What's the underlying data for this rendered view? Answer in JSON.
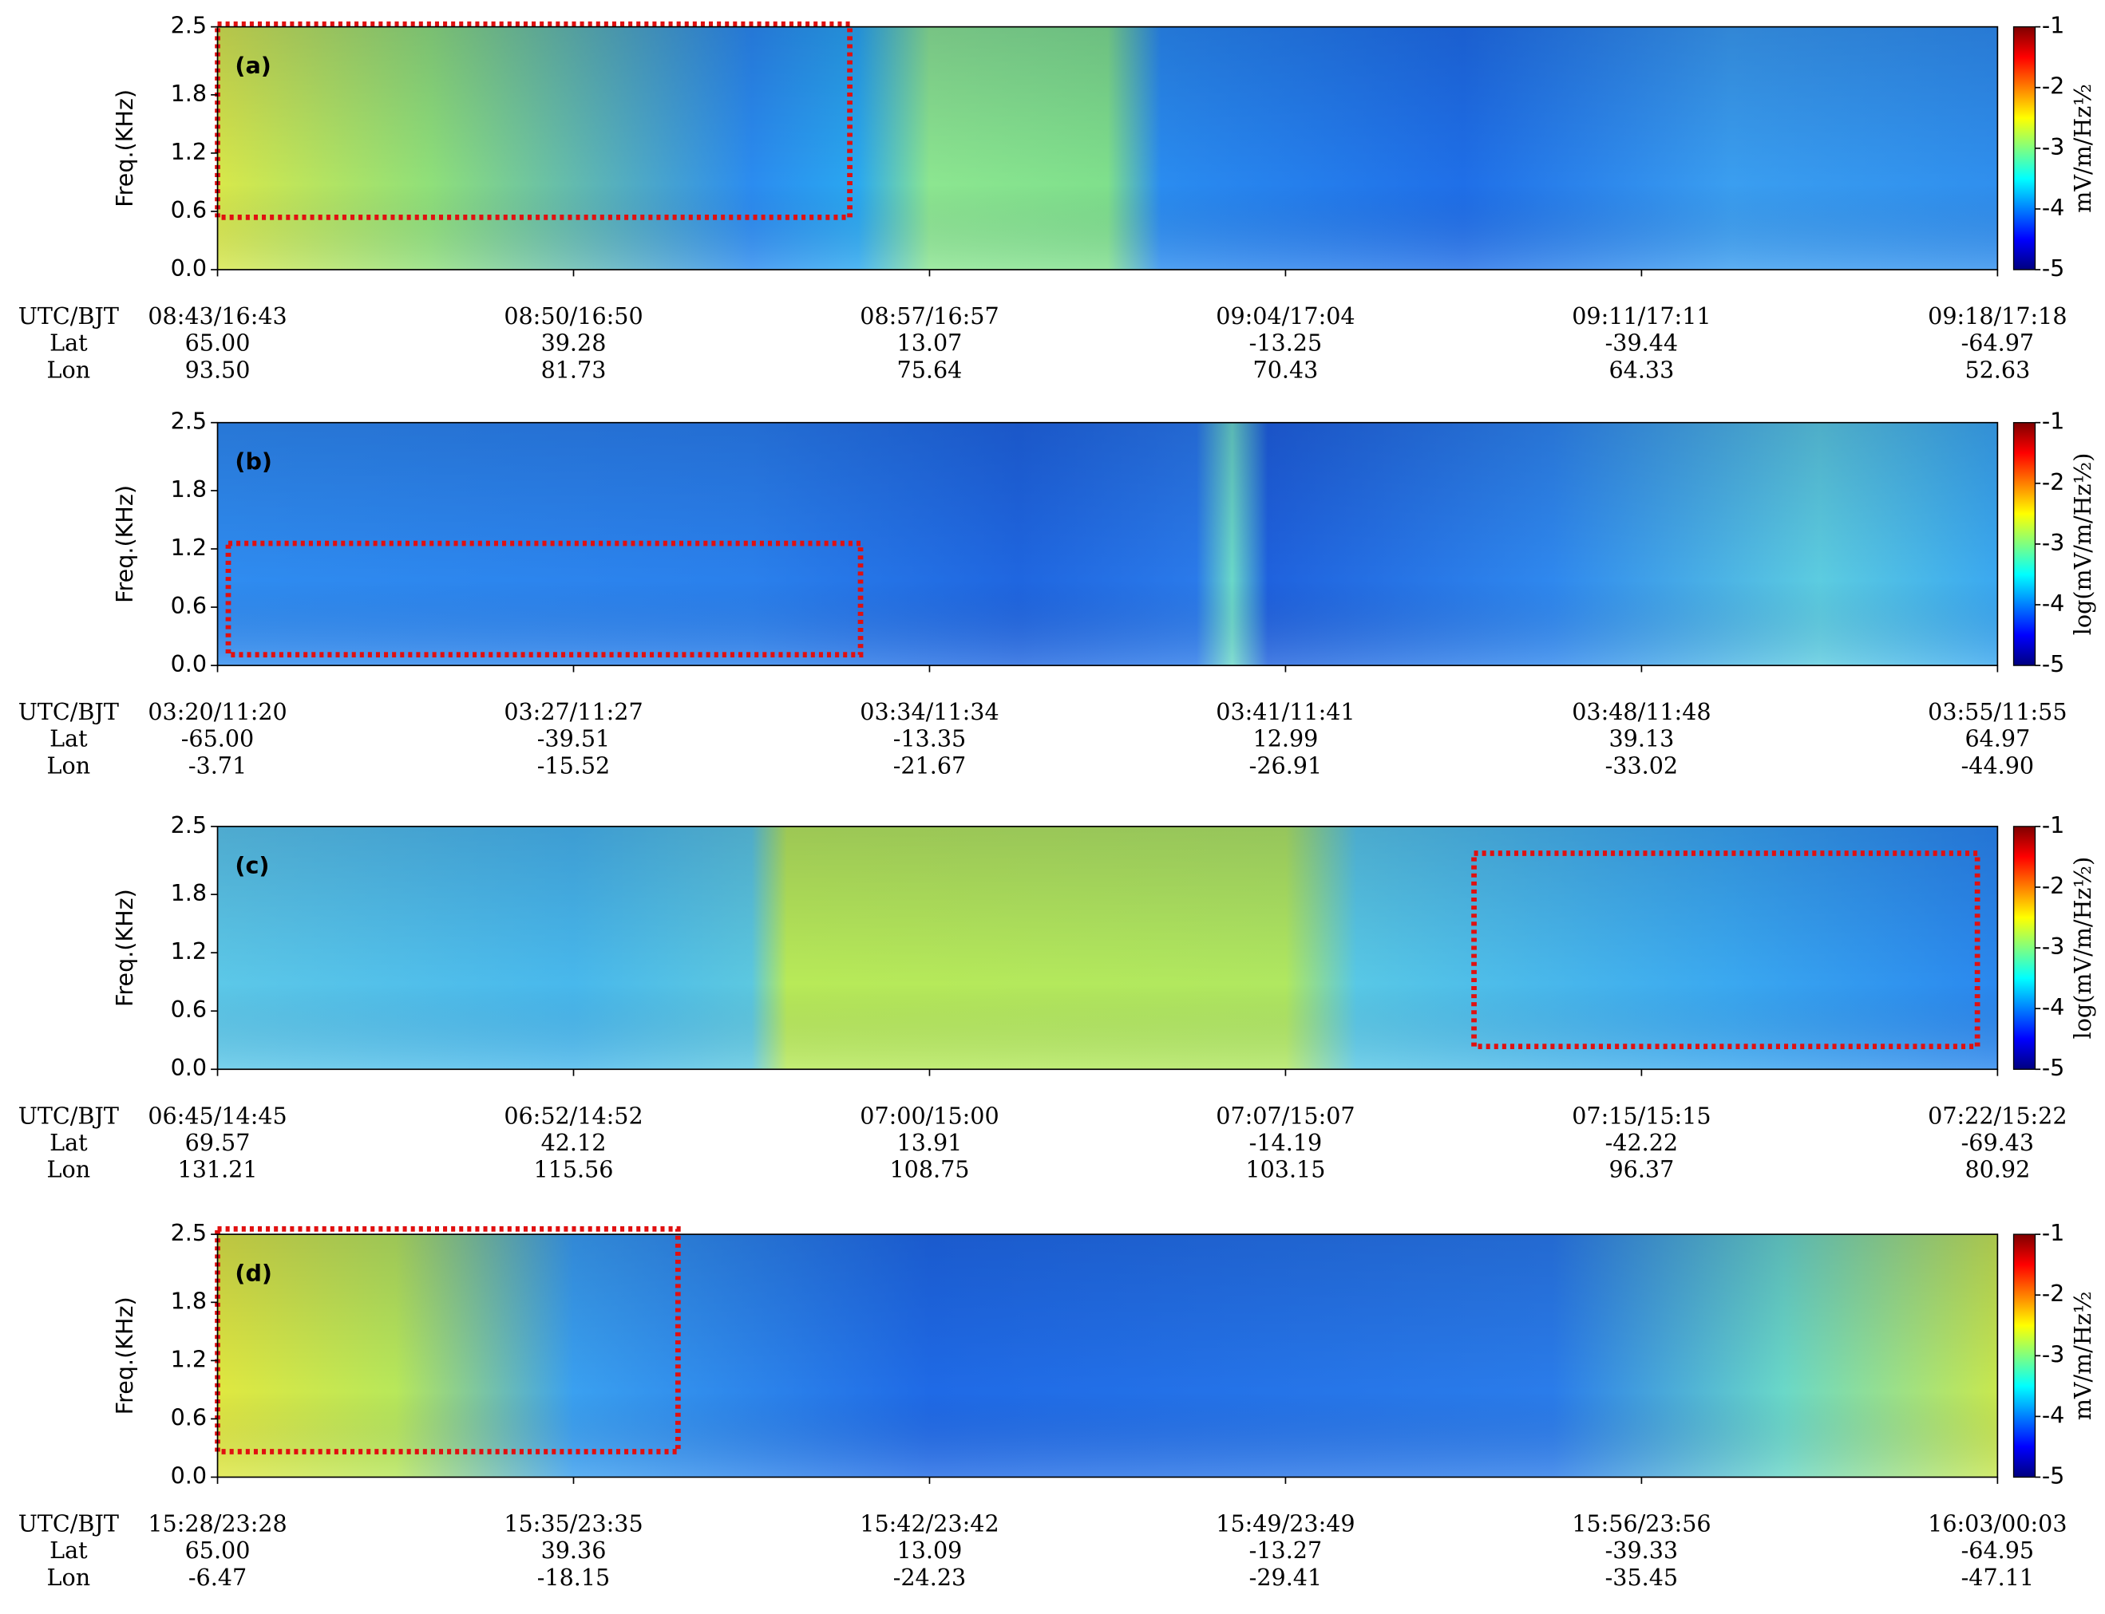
{
  "chart_data": [
    {
      "type": "spectrogram",
      "panel_label": "(a)",
      "ylabel": "Freq.(KHz)",
      "colormap": "jet",
      "ylim": [
        0,
        2.5
      ],
      "yticks": [
        {
          "value": 0,
          "label": "0.0"
        },
        0.6,
        1.2,
        1.8,
        2.5
      ],
      "clim": [
        -5,
        -1
      ],
      "cticks": [
        -5,
        -4,
        -3,
        -2,
        -1
      ],
      "clabel": "mV/m/Hz½",
      "xrows": [
        {
          "name": "UTC/BJT",
          "labels": [
            "08:43/16:43",
            "08:50/16:50",
            "08:57/16:57",
            "09:04/17:04",
            "09:11/17:11",
            "09:18/17:18"
          ]
        },
        {
          "name": "Lat",
          "labels": [
            "65.00",
            "39.28",
            "13.07",
            "-13.25",
            "-39.44",
            "-64.97"
          ]
        },
        {
          "name": "Lon",
          "labels": [
            "93.50",
            "81.73",
            "75.64",
            "70.43",
            "64.33",
            "52.63"
          ]
        }
      ]
    },
    {
      "type": "spectrogram",
      "panel_label": "(b)",
      "ylabel": "Freq.(KHz)",
      "colormap": "jet",
      "ylim": [
        0,
        2.5
      ],
      "yticks": [
        {
          "value": 0,
          "label": "0.0"
        },
        0.6,
        1.2,
        1.8,
        2.5
      ],
      "clim": [
        -5,
        -1
      ],
      "cticks": [
        -5,
        -4,
        -3,
        -2,
        -1
      ],
      "clabel": "log(mV/m/Hz½)",
      "xrows": [
        {
          "name": "UTC/BJT",
          "labels": [
            "03:20/11:20",
            "03:27/11:27",
            "03:34/11:34",
            "03:41/11:41",
            "03:48/11:48",
            "03:55/11:55"
          ]
        },
        {
          "name": "Lat",
          "labels": [
            "-65.00",
            "-39.51",
            "-13.35",
            "12.99",
            "39.13",
            "64.97"
          ]
        },
        {
          "name": "Lon",
          "labels": [
            "-3.71",
            "-15.52",
            "-21.67",
            "-26.91",
            "-33.02",
            "-44.90"
          ]
        }
      ]
    },
    {
      "type": "spectrogram",
      "panel_label": "(c)",
      "ylabel": "Freq.(KHz)",
      "colormap": "jet",
      "ylim": [
        0,
        2.5
      ],
      "yticks": [
        {
          "value": 0,
          "label": "0.0"
        },
        0.6,
        1.2,
        1.8,
        2.5
      ],
      "clim": [
        -5,
        -1
      ],
      "cticks": [
        -5,
        -4,
        -3,
        -2,
        -1
      ],
      "clabel": "log(mV/m/Hz½)",
      "xrows": [
        {
          "name": "UTC/BJT",
          "labels": [
            "06:45/14:45",
            "06:52/14:52",
            "07:00/15:00",
            "07:07/15:07",
            "07:15/15:15",
            "07:22/15:22"
          ]
        },
        {
          "name": "Lat",
          "labels": [
            "69.57",
            "42.12",
            "13.91",
            "-14.19",
            "-42.22",
            "-69.43"
          ]
        },
        {
          "name": "Lon",
          "labels": [
            "131.21",
            "115.56",
            "108.75",
            "103.15",
            "96.37",
            "80.92"
          ]
        }
      ]
    },
    {
      "type": "spectrogram",
      "panel_label": "(d)",
      "ylabel": "Freq.(KHz)",
      "colormap": "jet",
      "ylim": [
        0,
        2.5
      ],
      "yticks": [
        {
          "value": 0,
          "label": "0.0"
        },
        0.6,
        1.2,
        1.8,
        2.5
      ],
      "clim": [
        -5,
        -1
      ],
      "cticks": [
        -5,
        -4,
        -3,
        -2,
        -1
      ],
      "clabel": "mV/m/Hz½",
      "xrows": [
        {
          "name": "UTC/BJT",
          "labels": [
            "15:28/23:28",
            "15:35/23:35",
            "15:42/23:42",
            "15:49/23:49",
            "15:56/23:56",
            "16:03/00:03"
          ]
        },
        {
          "name": "Lat",
          "labels": [
            "65.00",
            "39.36",
            "13.09",
            "-13.27",
            "-39.33",
            "-64.95"
          ]
        },
        {
          "name": "Lon",
          "labels": [
            "-6.47",
            "-18.15",
            "-24.23",
            "-29.41",
            "-35.45",
            "-47.11"
          ]
        }
      ]
    }
  ]
}
